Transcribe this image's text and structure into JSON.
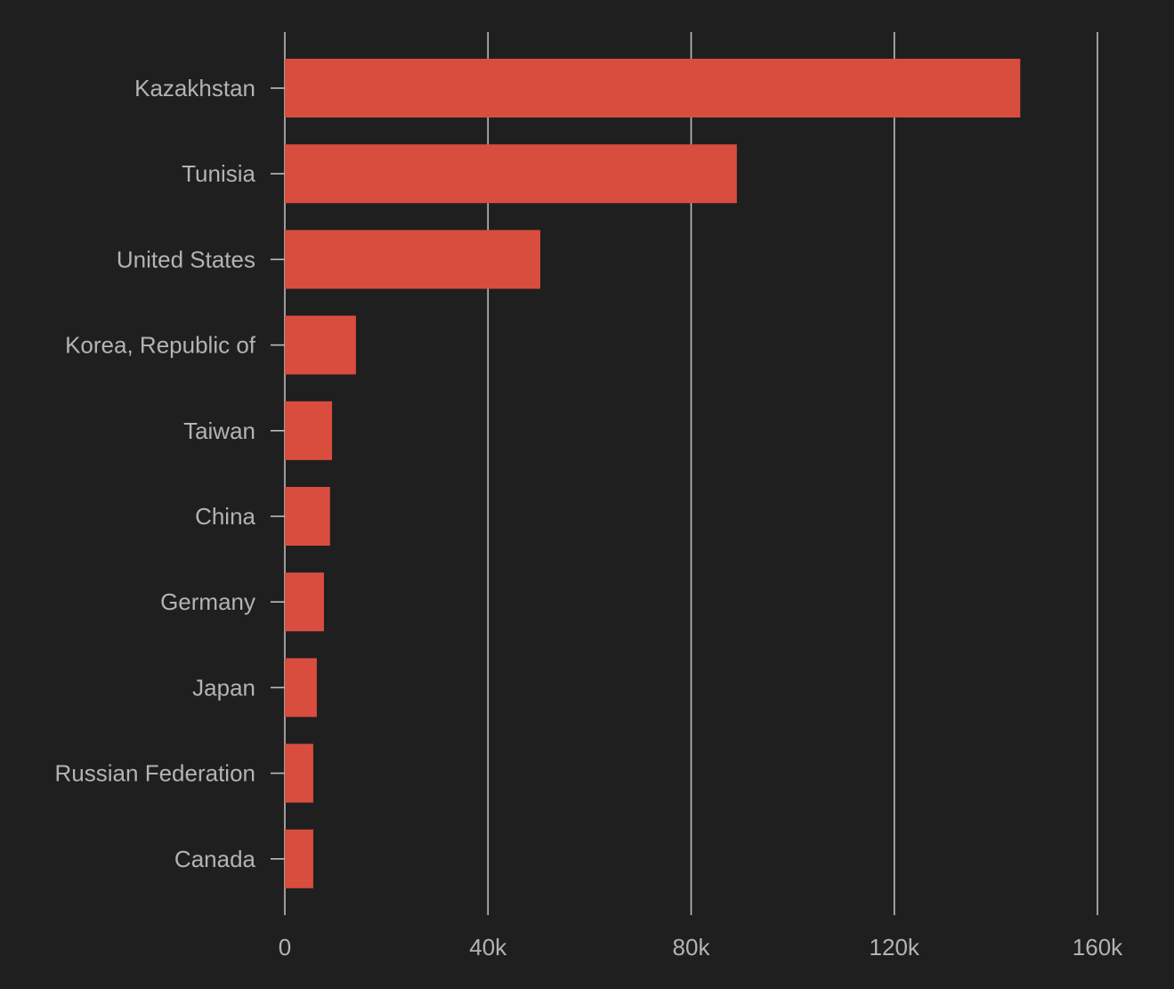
{
  "colors": {
    "background": "#1f1f1f",
    "bar": "#d94d3f",
    "grid": "#bdbdbd",
    "axis": "#bdbdbd",
    "text": "#b3b3b3"
  },
  "chart_data": {
    "type": "bar",
    "orientation": "horizontal",
    "title": "",
    "xlabel": "",
    "ylabel": "",
    "categories": [
      "Kazakhstan",
      "Tunisia",
      "United States",
      "Korea, Republic of",
      "Taiwan",
      "China",
      "Germany",
      "Japan",
      "Russian Federation",
      "Canada"
    ],
    "values": [
      144800,
      89000,
      50300,
      14000,
      9300,
      8900,
      7700,
      6300,
      5600,
      5600
    ],
    "xlim": [
      0,
      160000
    ],
    "xticks": [
      0,
      40000,
      80000,
      120000,
      160000
    ],
    "xtick_labels": [
      "0",
      "40k",
      "80k",
      "120k",
      "160k"
    ],
    "grid": "vertical",
    "legend": "none"
  }
}
